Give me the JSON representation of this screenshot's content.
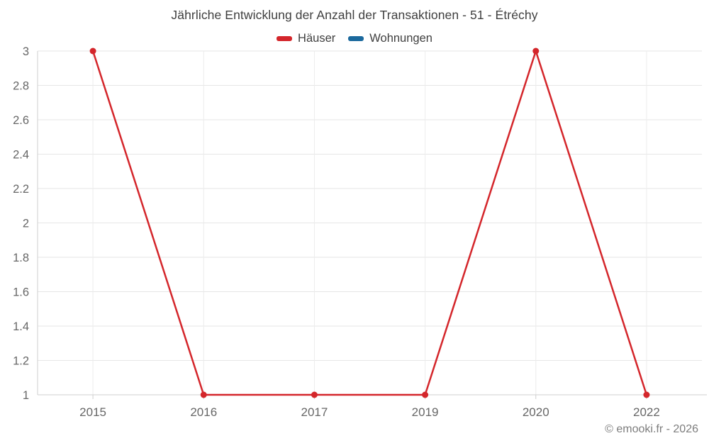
{
  "header": {
    "title": "Jährliche Entwicklung der Anzahl der Transaktionen - 51 - Étréchy"
  },
  "legend": {
    "items": [
      {
        "label": "Häuser",
        "color": "#d4262b"
      },
      {
        "label": "Wohnungen",
        "color": "#1b699d"
      }
    ]
  },
  "footer": {
    "credit": "© emooki.fr - 2026"
  },
  "colors": {
    "haeuser_red": "#d4262b",
    "wohnungen_blue": "#1b699d",
    "grid_h": "#e6e6e6",
    "grid_v": "#ececec",
    "axis": "#cfcfcf",
    "tick_label": "#666666",
    "title_text": "#3f3f3f",
    "footer_text": "#7d7d7d"
  },
  "chart_data": {
    "type": "line",
    "title": "Jährliche Entwicklung der Anzahl der Transaktionen - 51 - Étréchy",
    "categories": [
      "2015",
      "2016",
      "2017",
      "2019",
      "2020",
      "2022"
    ],
    "series": [
      {
        "name": "Häuser",
        "color": "#d4262b",
        "values": [
          3,
          1,
          1,
          1,
          3,
          1
        ]
      },
      {
        "name": "Wohnungen",
        "color": "#1b699d",
        "values": []
      }
    ],
    "xlabel": "",
    "ylabel": "",
    "ylim": [
      1,
      3
    ],
    "y_ticks": [
      1,
      1.2,
      1.4,
      1.6,
      1.8,
      2,
      2.2,
      2.4,
      2.6,
      2.8,
      3
    ],
    "y_tick_labels": [
      "1",
      "1.2",
      "1.4",
      "1.6",
      "1.8",
      "2",
      "2.2",
      "2.4",
      "2.6",
      "2.8",
      "3"
    ],
    "grid": true,
    "legend_position": "top",
    "markers": true
  }
}
